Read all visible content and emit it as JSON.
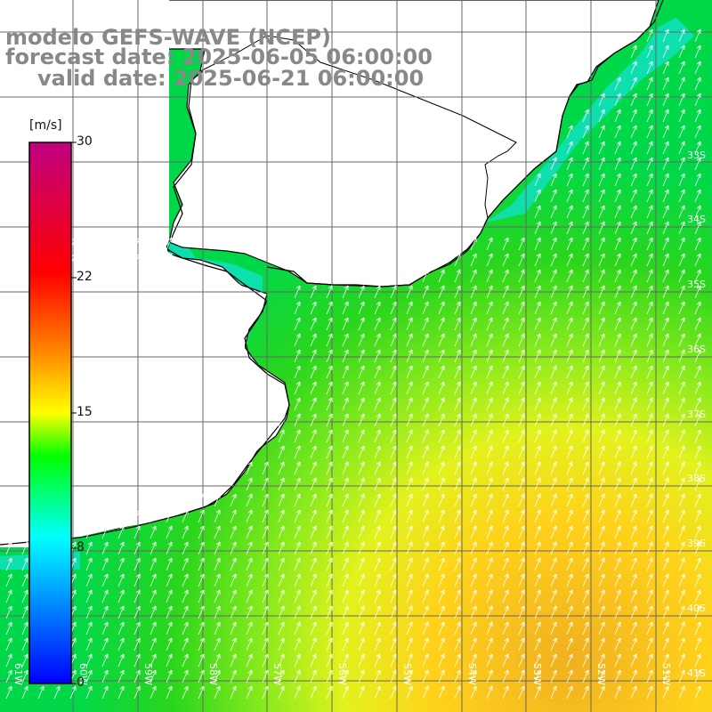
{
  "title": {
    "line1": "modelo GEFS-WAVE (NCEP)",
    "line2": "forecast date: 2025-06-05 06:00:00",
    "line3": "valid date: 2025-06-21 06:00:00"
  },
  "colorbar": {
    "unit": "[m/s]",
    "ticks": [
      "30",
      "22",
      "15",
      "8",
      "0"
    ],
    "stops": [
      "#0000ff",
      "#00ffff",
      "#00ff00",
      "#ffff00",
      "#ff8000",
      "#ff0000",
      "#c00080"
    ]
  },
  "latitude_labels": [
    "33S",
    "34S",
    "35S",
    "36S",
    "37S",
    "38S",
    "39S",
    "40S",
    "41S"
  ],
  "longitude_labels": [
    "61W",
    "60W",
    "59W",
    "58W",
    "57W",
    "56W",
    "55W",
    "54W",
    "53W",
    "52W",
    "51W"
  ],
  "colors": {
    "land": "#ffffff",
    "grid": "#666666",
    "coast": "#000000",
    "arrow": "#ffffff"
  }
}
